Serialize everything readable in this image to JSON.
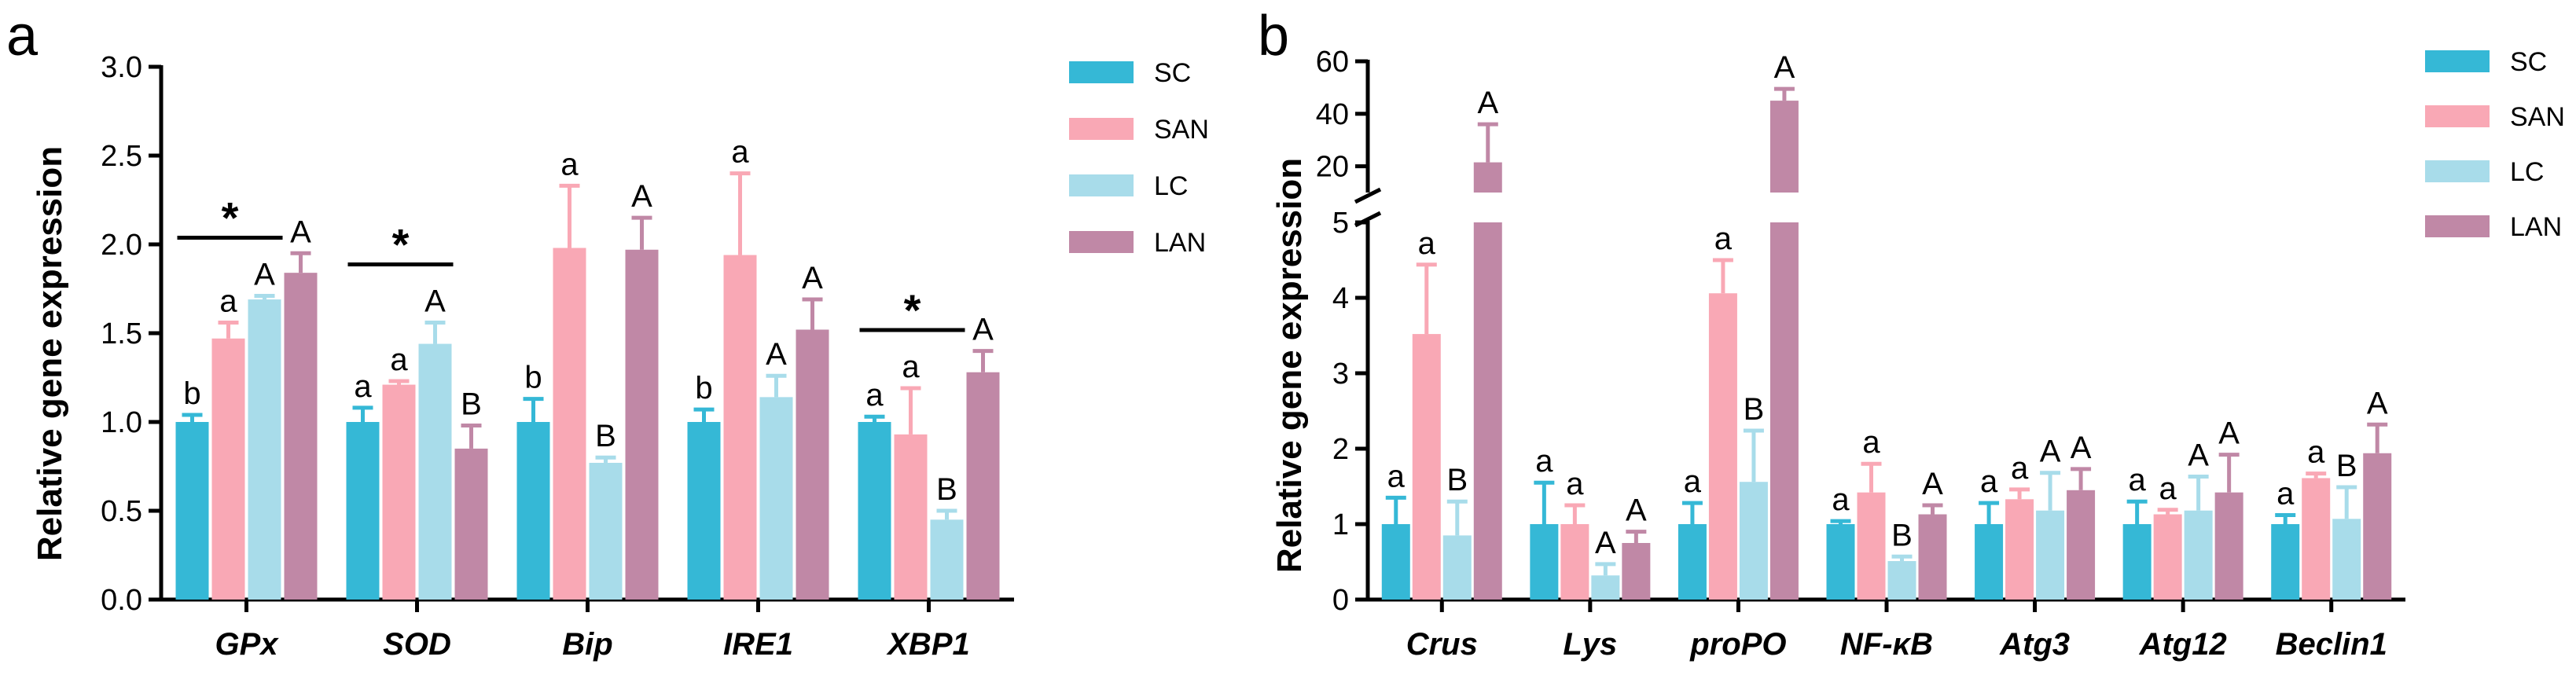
{
  "chart_data": [
    {
      "panel": "a",
      "type": "bar",
      "ylabel": "Relative gene expression",
      "ylim": [
        0,
        3.0
      ],
      "yticks": [
        "0.0",
        "0.5",
        "1.0",
        "1.5",
        "2.0",
        "2.5",
        "3.0"
      ],
      "categories": [
        "GPx",
        "SOD",
        "Bip",
        "IRE1",
        "XBP1"
      ],
      "series": [
        {
          "name": "SC",
          "color": "#35b8d6",
          "values": [
            1.0,
            1.0,
            1.0,
            1.0,
            1.0
          ],
          "errors": [
            0.04,
            0.08,
            0.13,
            0.07,
            0.03
          ],
          "labels": [
            "b",
            "a",
            "b",
            "b",
            "a"
          ]
        },
        {
          "name": "SAN",
          "color": "#f9a8b5",
          "values": [
            1.47,
            1.21,
            1.98,
            1.94,
            0.93
          ],
          "errors": [
            0.09,
            0.02,
            0.35,
            0.46,
            0.26
          ],
          "labels": [
            "a",
            "a",
            "a",
            "a",
            "a"
          ]
        },
        {
          "name": "LC",
          "color": "#a8dcea",
          "values": [
            1.69,
            1.44,
            0.77,
            1.14,
            0.45
          ],
          "errors": [
            0.02,
            0.12,
            0.03,
            0.12,
            0.05
          ],
          "labels": [
            "A",
            "A",
            "B",
            "A",
            "B"
          ]
        },
        {
          "name": "LAN",
          "color": "#c088a6",
          "values": [
            1.84,
            0.85,
            1.97,
            1.52,
            1.28
          ],
          "errors": [
            0.11,
            0.13,
            0.18,
            0.17,
            0.12
          ],
          "labels": [
            "A",
            "B",
            "A",
            "A",
            "A"
          ]
        }
      ],
      "significance": [
        {
          "label": "*",
          "category_index": 0
        },
        {
          "label": "*",
          "category_index": 1
        },
        {
          "label": "*",
          "category_index": 4
        }
      ],
      "legend": [
        "SC",
        "SAN",
        "LC",
        "LAN"
      ],
      "legend_position": "right"
    },
    {
      "panel": "b",
      "type": "bar",
      "ylabel": "Relative gene expression",
      "ylim_lower": [
        0,
        5
      ],
      "ylim_upper": [
        10,
        60
      ],
      "yticks_lower": [
        "0",
        "1",
        "2",
        "3",
        "4",
        "5"
      ],
      "yticks_upper": [
        "20",
        "40",
        "60"
      ],
      "axis_break": true,
      "categories": [
        "Crus",
        "Lys",
        "proPO",
        "NF-κB",
        "Atg3",
        "Atg12",
        "Beclin1"
      ],
      "series": [
        {
          "name": "SC",
          "color": "#35b8d6",
          "values": [
            1.0,
            1.0,
            1.0,
            1.0,
            1.0,
            1.0,
            1.0
          ],
          "errors": [
            0.35,
            0.55,
            0.28,
            0.04,
            0.28,
            0.3,
            0.12
          ],
          "labels": [
            "a",
            "a",
            "a",
            "a",
            "a",
            "a",
            "a"
          ]
        },
        {
          "name": "SAN",
          "color": "#f9a8b5",
          "values": [
            3.52,
            1.0,
            4.06,
            1.42,
            1.33,
            1.13,
            1.61
          ],
          "errors": [
            0.92,
            0.25,
            0.44,
            0.38,
            0.13,
            0.06,
            0.06
          ],
          "labels": [
            "a",
            "a",
            "a",
            "a",
            "a",
            "a",
            "a"
          ]
        },
        {
          "name": "LC",
          "color": "#a8dcea",
          "values": [
            0.85,
            0.32,
            1.56,
            0.51,
            1.18,
            1.18,
            1.07
          ],
          "errors": [
            0.45,
            0.15,
            0.68,
            0.06,
            0.5,
            0.45,
            0.42
          ],
          "labels": [
            "B",
            "A",
            "B",
            "B",
            "A",
            "A",
            "B"
          ]
        },
        {
          "name": "LAN",
          "color": "#c088a6",
          "values": [
            21.5,
            0.75,
            45.0,
            1.13,
            1.45,
            1.42,
            1.94
          ],
          "errors": [
            14.5,
            0.15,
            4.5,
            0.12,
            0.28,
            0.5,
            0.38
          ],
          "labels": [
            "A",
            "A",
            "A",
            "A",
            "A",
            "A",
            "A"
          ]
        }
      ],
      "legend": [
        "SC",
        "SAN",
        "LC",
        "LAN"
      ],
      "legend_position": "top-right"
    }
  ]
}
